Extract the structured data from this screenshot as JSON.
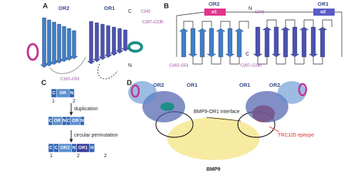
{
  "panel_a": {
    "label": "A",
    "domain_left": "OR2",
    "domain_right": "OR1",
    "disulfide_1": "C242",
    "disulfide_2": "C207–C230",
    "disulfide_3": "C162–C53",
    "terminus_c": "C",
    "terminus_n": "N"
  },
  "panel_b": {
    "label": "B",
    "domain_left": "OR2",
    "helix_left": "α1",
    "domain_right": "OR1",
    "helix_right": "α2",
    "disulfide_1": "C162–C53",
    "disulfide_2": "C207–C230",
    "disulfide_3": "C242",
    "terminus_n": "N",
    "terminus_c": "C"
  },
  "panel_c": {
    "label": "C",
    "row1": [
      "C",
      "OR",
      "N"
    ],
    "row1_numbers": [
      "1",
      "2"
    ],
    "step1": "duplication",
    "row2": [
      "C",
      "OR",
      "N",
      "C",
      "OR",
      "N"
    ],
    "step2": "circular permutation",
    "row3": [
      "C",
      "C",
      "OR2",
      "N",
      "OR1",
      "N"
    ],
    "row3_numbers": [
      "1",
      "2",
      "2"
    ]
  },
  "panel_d": {
    "label": "D",
    "left_or2": "OR2",
    "left_or1": "OR1",
    "right_or1": "OR1",
    "right_or2": "OR2",
    "interface": "BMP9-OR1 interface",
    "epitope": "TRC105 epitope",
    "ligand": "BMP9"
  }
}
